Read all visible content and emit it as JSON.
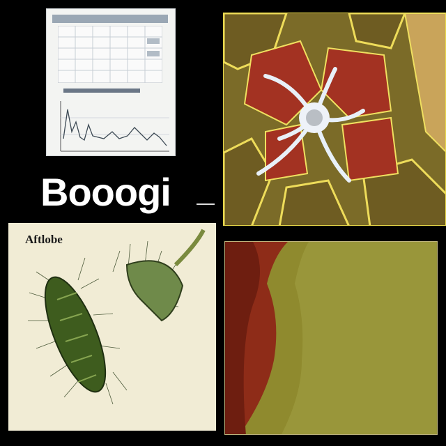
{
  "title": {
    "text": "Booogi"
  },
  "illustration": {
    "label": "Aftlobe"
  },
  "panels": {
    "chart_preview": {
      "kind": "document-chart-thumbnail"
    },
    "micrograph": {
      "kind": "stained-tissue-micrograph"
    },
    "illustration": {
      "kind": "bacterium-illustration"
    },
    "tissue": {
      "kind": "tissue-closeup"
    }
  },
  "colors": {
    "background": "#000000",
    "micrograph_red": "#9a2a18",
    "micrograph_yellow": "#f0e060",
    "tissue_green": "#8f8a2e",
    "tissue_red": "#8a2a16",
    "illustration_green": "#3c5a1c"
  }
}
